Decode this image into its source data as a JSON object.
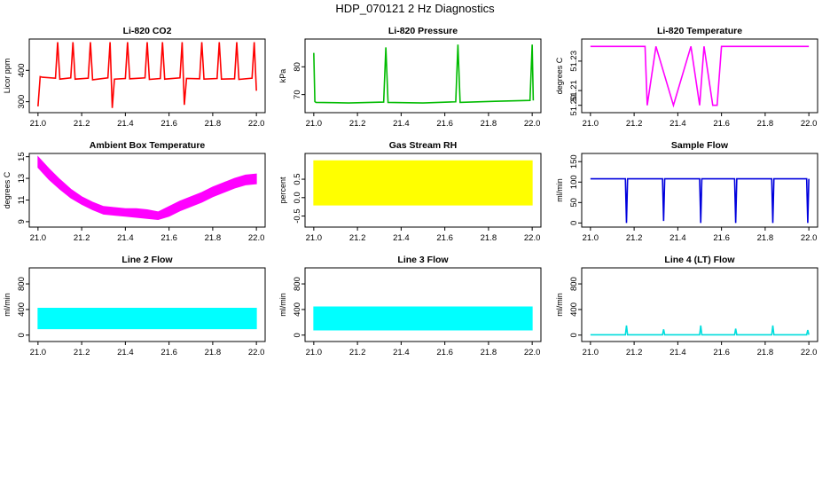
{
  "figure": {
    "title": "HDP_070121  2 Hz Diagnostics"
  },
  "chart_data": [
    {
      "type": "line",
      "title": "Li-820 CO2",
      "ylabel": "Licor ppm",
      "color": "#ff0000",
      "xlim": [
        20.96,
        22.04
      ],
      "ylim": [
        265,
        500
      ],
      "xticks": [
        "21.0",
        "21.2",
        "21.4",
        "21.6",
        "21.8",
        "22.0"
      ],
      "yticks": [
        "300",
        "400"
      ],
      "series": [
        {
          "x": [
            21.0,
            21.01,
            21.02,
            21.08,
            21.09,
            21.1,
            21.15,
            21.16,
            21.17,
            21.23,
            21.24,
            21.25,
            21.32,
            21.33,
            21.34,
            21.35,
            21.4,
            21.41,
            21.42,
            21.49,
            21.5,
            21.51,
            21.56,
            21.57,
            21.58,
            21.65,
            21.66,
            21.67,
            21.68,
            21.74,
            21.75,
            21.76,
            21.82,
            21.83,
            21.84,
            21.9,
            21.91,
            21.92,
            21.98,
            21.99,
            22.0
          ],
          "y": [
            285,
            380,
            378,
            375,
            490,
            372,
            376,
            490,
            372,
            375,
            490,
            370,
            376,
            490,
            280,
            372,
            374,
            490,
            373,
            376,
            490,
            371,
            374,
            490,
            372,
            376,
            490,
            290,
            374,
            373,
            490,
            372,
            374,
            490,
            372,
            373,
            490,
            371,
            375,
            490,
            335
          ]
        }
      ]
    },
    {
      "type": "line",
      "title": "Li-820 Pressure",
      "ylabel": "kPa",
      "color": "#00bb00",
      "xlim": [
        20.96,
        22.04
      ],
      "ylim": [
        63.5,
        90
      ],
      "xticks": [
        "21.0",
        "21.2",
        "21.4",
        "21.6",
        "21.8",
        "22.0"
      ],
      "yticks": [
        "70",
        "80"
      ],
      "series": [
        {
          "x": [
            21.0,
            21.005,
            21.01,
            21.16,
            21.32,
            21.33,
            21.34,
            21.5,
            21.65,
            21.66,
            21.67,
            21.83,
            21.99,
            22.0,
            22.005
          ],
          "y": [
            85,
            67.5,
            67.2,
            67.0,
            67.3,
            87,
            67.2,
            67.0,
            67.4,
            88,
            67.2,
            67.6,
            67.9,
            88,
            67.9
          ]
        }
      ]
    },
    {
      "type": "line",
      "title": "Li-820 Temperature",
      "ylabel": "degrees C",
      "color": "#ff00ff",
      "xlim": [
        20.96,
        22.04
      ],
      "ylim": [
        51.195,
        51.245
      ],
      "xticks": [
        "21.0",
        "21.2",
        "21.4",
        "21.6",
        "21.8",
        "22.0"
      ],
      "yticks": [
        "51.20",
        "51.21",
        "51.23"
      ],
      "series": [
        {
          "x": [
            21.0,
            21.11,
            21.2,
            21.25,
            21.26,
            21.3,
            21.38,
            21.46,
            21.5,
            21.52,
            21.56,
            21.58,
            21.6,
            21.66,
            21.75,
            21.85,
            21.9,
            22.0
          ],
          "y": [
            51.24,
            51.24,
            51.24,
            51.24,
            51.2,
            51.24,
            51.2,
            51.24,
            51.2,
            51.24,
            51.2,
            51.2,
            51.24,
            51.24,
            51.24,
            51.24,
            51.24,
            51.24
          ]
        }
      ]
    },
    {
      "type": "area",
      "title": "Ambient Box Temperature",
      "ylabel": "degrees C",
      "color": "#ff00ff",
      "xlim": [
        20.96,
        22.04
      ],
      "ylim": [
        8.5,
        15.3
      ],
      "xticks": [
        "21.0",
        "21.2",
        "21.4",
        "21.6",
        "21.8",
        "22.0"
      ],
      "yticks": [
        "9",
        "11",
        "13",
        "15"
      ],
      "series": [
        {
          "x": [
            21.0,
            21.05,
            21.1,
            21.15,
            21.2,
            21.25,
            21.3,
            21.35,
            21.4,
            21.45,
            21.5,
            21.55,
            21.6,
            21.65,
            21.7,
            21.75,
            21.8,
            21.85,
            21.9,
            21.95,
            22.0
          ],
          "low": [
            14.0,
            12.9,
            12.0,
            11.2,
            10.6,
            10.1,
            9.7,
            9.6,
            9.5,
            9.4,
            9.3,
            9.2,
            9.5,
            10.0,
            10.4,
            10.8,
            11.3,
            11.7,
            12.1,
            12.4,
            12.5
          ],
          "high": [
            15.0,
            13.9,
            12.9,
            12.0,
            11.3,
            10.8,
            10.4,
            10.3,
            10.2,
            10.2,
            10.1,
            9.9,
            10.4,
            10.9,
            11.3,
            11.7,
            12.2,
            12.6,
            13.0,
            13.3,
            13.4
          ]
        }
      ]
    },
    {
      "type": "area",
      "title": "Gas Stream RH",
      "ylabel": "percent",
      "color": "#ffff00",
      "xlim": [
        20.96,
        22.04
      ],
      "ylim": [
        -0.8,
        1.2
      ],
      "xticks": [
        "21.0",
        "21.2",
        "21.4",
        "21.6",
        "21.8",
        "22.0"
      ],
      "yticks": [
        "-0.5",
        "0.0",
        "0.5"
      ],
      "series": [
        {
          "x": [
            21.0,
            22.0
          ],
          "low": [
            -0.2,
            -0.2
          ],
          "high": [
            1.0,
            1.0
          ]
        }
      ]
    },
    {
      "type": "line",
      "title": "Sample Flow",
      "ylabel": "ml/min",
      "color": "#0000dd",
      "xlim": [
        20.96,
        22.04
      ],
      "ylim": [
        -10,
        170
      ],
      "xticks": [
        "21.0",
        "21.2",
        "21.4",
        "21.6",
        "21.8",
        "22.0"
      ],
      "yticks": [
        "0",
        "50",
        "100",
        "150"
      ],
      "series": [
        {
          "x": [
            21.0,
            21.16,
            21.165,
            21.17,
            21.33,
            21.335,
            21.34,
            21.5,
            21.505,
            21.51,
            21.66,
            21.665,
            21.67,
            21.83,
            21.835,
            21.84,
            21.99,
            21.995,
            22.0
          ],
          "y": [
            108,
            108,
            0,
            108,
            108,
            5,
            108,
            108,
            0,
            108,
            108,
            0,
            108,
            108,
            0,
            108,
            108,
            0,
            108
          ]
        }
      ]
    },
    {
      "type": "area",
      "title": "Line 2 Flow",
      "ylabel": "ml/min",
      "color": "#00ffff",
      "xlim": [
        20.96,
        22.04
      ],
      "ylim": [
        -100,
        1050
      ],
      "xticks": [
        "21.0",
        "21.2",
        "21.4",
        "21.6",
        "21.8",
        "22.0"
      ],
      "yticks": [
        "0",
        "400",
        "800"
      ],
      "series": [
        {
          "x": [
            21.0,
            22.0
          ],
          "low": [
            100,
            100
          ],
          "high": [
            420,
            420
          ]
        }
      ]
    },
    {
      "type": "area",
      "title": "Line 3 Flow",
      "ylabel": "ml/min",
      "color": "#00ffff",
      "xlim": [
        20.96,
        22.04
      ],
      "ylim": [
        -100,
        1050
      ],
      "xticks": [
        "21.0",
        "21.2",
        "21.4",
        "21.6",
        "21.8",
        "22.0"
      ],
      "yticks": [
        "0",
        "400",
        "800"
      ],
      "series": [
        {
          "x": [
            21.0,
            22.0
          ],
          "low": [
            80,
            80
          ],
          "high": [
            440,
            440
          ]
        }
      ]
    },
    {
      "type": "line",
      "title": "Line 4 (LT) Flow",
      "ylabel": "ml/min",
      "color": "#00dddd",
      "xlim": [
        20.96,
        22.04
      ],
      "ylim": [
        -100,
        1050
      ],
      "xticks": [
        "21.0",
        "21.2",
        "21.4",
        "21.6",
        "21.8",
        "22.0"
      ],
      "yticks": [
        "0",
        "400",
        "800"
      ],
      "series": [
        {
          "x": [
            21.0,
            21.16,
            21.165,
            21.17,
            21.33,
            21.335,
            21.34,
            21.5,
            21.505,
            21.51,
            21.66,
            21.665,
            21.67,
            21.83,
            21.835,
            21.84,
            21.99,
            21.995,
            22.0
          ],
          "y": [
            5,
            5,
            150,
            5,
            5,
            90,
            5,
            5,
            150,
            5,
            5,
            100,
            5,
            5,
            150,
            5,
            5,
            80,
            5
          ]
        }
      ]
    }
  ]
}
